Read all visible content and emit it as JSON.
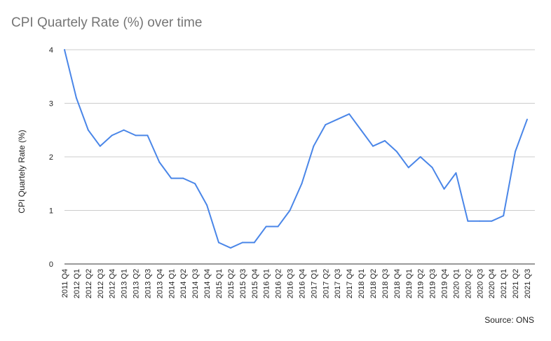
{
  "chart_data": {
    "type": "line",
    "title": "CPI Quartely Rate (%) over time",
    "xlabel": "",
    "ylabel": "CPI Quartely Rate (%)",
    "ylim": [
      0,
      4
    ],
    "yticks": [
      "0",
      "1",
      "2",
      "3",
      "4"
    ],
    "grid": true,
    "legend": "none",
    "source": "Source: ONS",
    "categories": [
      "2011 Q4",
      "2012 Q1",
      "2012 Q2",
      "2012 Q3",
      "2012 Q4",
      "2013 Q1",
      "2013 Q2",
      "2013 Q3",
      "2013 Q4",
      "2014 Q1",
      "2014 Q2",
      "2014 Q3",
      "2014 Q4",
      "2015 Q1",
      "2015 Q2",
      "2015 Q3",
      "2015 Q4",
      "2016 Q1",
      "2016 Q2",
      "2016 Q3",
      "2016 Q4",
      "2017 Q1",
      "2017 Q2",
      "2017 Q3",
      "2017 Q4",
      "2018 Q1",
      "2018 Q2",
      "2018 Q3",
      "2018 Q4",
      "2019 Q1",
      "2019 Q2",
      "2019 Q3",
      "2019 Q4",
      "2020 Q1",
      "2020 Q2",
      "2020 Q3",
      "2020 Q4",
      "2021 Q1",
      "2021 Q2",
      "2021 Q3"
    ],
    "series": [
      {
        "color": "#4a86e8",
        "values": [
          4.0,
          3.1,
          2.5,
          2.2,
          2.4,
          2.5,
          2.4,
          2.4,
          1.9,
          1.6,
          1.6,
          1.5,
          1.1,
          0.4,
          0.3,
          0.4,
          0.4,
          0.7,
          0.7,
          1.0,
          1.5,
          2.2,
          2.6,
          2.7,
          2.8,
          2.5,
          2.2,
          2.3,
          2.1,
          1.8,
          2.0,
          1.8,
          1.4,
          1.7,
          0.8,
          0.8,
          0.8,
          0.9,
          2.1,
          2.7
        ]
      }
    ]
  }
}
